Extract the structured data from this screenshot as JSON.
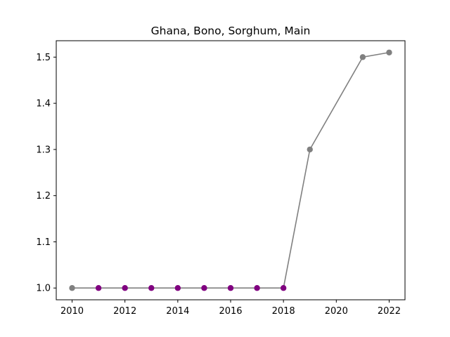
{
  "chart_data": {
    "type": "line",
    "title": "Ghana, Bono, Sorghum, Main",
    "xlabel": "",
    "ylabel": "",
    "xlim": [
      2009.4,
      2022.6
    ],
    "ylim": [
      0.9745,
      1.5355
    ],
    "xticks": [
      2010,
      2012,
      2014,
      2016,
      2018,
      2020,
      2022
    ],
    "yticks": [
      1.0,
      1.1,
      1.2,
      1.3,
      1.4,
      1.5
    ],
    "ytick_labels": [
      "1.0",
      "1.1",
      "1.2",
      "1.3",
      "1.4",
      "1.5"
    ],
    "grid": false,
    "series": [
      {
        "line_color": "#808080",
        "points": [
          {
            "x": 2010,
            "y": 1.0,
            "color": "#808080"
          },
          {
            "x": 2011,
            "y": 1.0,
            "color": "#800080"
          },
          {
            "x": 2012,
            "y": 1.0,
            "color": "#800080"
          },
          {
            "x": 2013,
            "y": 1.0,
            "color": "#800080"
          },
          {
            "x": 2014,
            "y": 1.0,
            "color": "#800080"
          },
          {
            "x": 2015,
            "y": 1.0,
            "color": "#800080"
          },
          {
            "x": 2016,
            "y": 1.0,
            "color": "#800080"
          },
          {
            "x": 2017,
            "y": 1.0,
            "color": "#800080"
          },
          {
            "x": 2018,
            "y": 1.0,
            "color": "#800080"
          },
          {
            "x": 2019,
            "y": 1.3,
            "color": "#808080"
          },
          {
            "x": 2021,
            "y": 1.5,
            "color": "#808080"
          },
          {
            "x": 2022,
            "y": 1.51,
            "color": "#808080"
          }
        ]
      }
    ]
  }
}
